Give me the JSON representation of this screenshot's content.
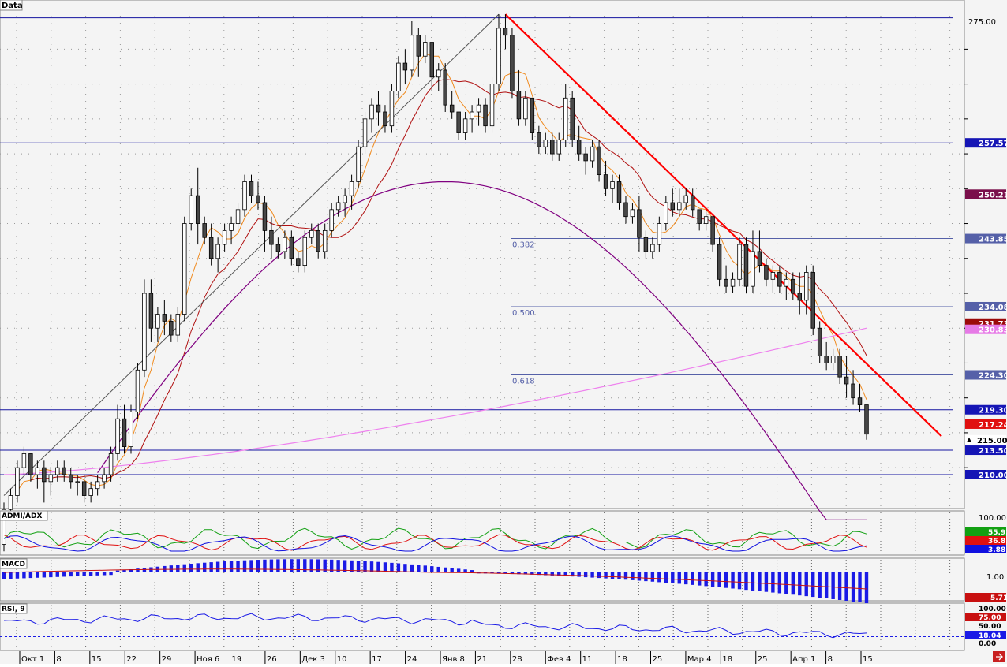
{
  "panels": {
    "main_label": "Data",
    "adx_label": "ADMI/ADX",
    "macd_label": "MACD",
    "rsi_label": "RSI, 9"
  },
  "chart_data": [
    {
      "type": "candlestick",
      "panel": "main",
      "y_axis_ticks": [
        "275.00"
      ],
      "ylim": [
        205,
        276
      ],
      "candles": {
        "values": [
          [
            200,
            206,
            199,
            205
          ],
          [
            205,
            208,
            204,
            207
          ],
          [
            207,
            212,
            206,
            211
          ],
          [
            211,
            214,
            210,
            213
          ],
          [
            213,
            213,
            209,
            210
          ],
          [
            210,
            212,
            208,
            211
          ],
          [
            211,
            212,
            206,
            209
          ],
          [
            209,
            211,
            207,
            210
          ],
          [
            210,
            212,
            209,
            211
          ],
          [
            211,
            212,
            209,
            210
          ],
          [
            210,
            211,
            208,
            209
          ],
          [
            209,
            210,
            207,
            209
          ],
          [
            209,
            210,
            206,
            207
          ],
          [
            207,
            209,
            206,
            208
          ],
          [
            208,
            210,
            207,
            209
          ],
          [
            209,
            211,
            208,
            210
          ],
          [
            210,
            214,
            209,
            213
          ],
          [
            213,
            220,
            212,
            218
          ],
          [
            218,
            220,
            213,
            214
          ],
          [
            214,
            220,
            213,
            219
          ],
          [
            219,
            226,
            218,
            225
          ],
          [
            225,
            238,
            224,
            236
          ],
          [
            236,
            238,
            229,
            231
          ],
          [
            231,
            234,
            229,
            233
          ],
          [
            233,
            235,
            230,
            232
          ],
          [
            232,
            233,
            229,
            230
          ],
          [
            230,
            234,
            229,
            233
          ],
          [
            233,
            247,
            232,
            246
          ],
          [
            246,
            251,
            245,
            250
          ],
          [
            250,
            254,
            243,
            246
          ],
          [
            246,
            247,
            243,
            244
          ],
          [
            244,
            246,
            240,
            241
          ],
          [
            241,
            244,
            239,
            243
          ],
          [
            243,
            246,
            242,
            245
          ],
          [
            245,
            247,
            243,
            246
          ],
          [
            246,
            249,
            245,
            248
          ],
          [
            248,
            253,
            247,
            252
          ],
          [
            252,
            253,
            249,
            250
          ],
          [
            250,
            252,
            248,
            249
          ],
          [
            249,
            250,
            242,
            245
          ],
          [
            245,
            247,
            241,
            243
          ],
          [
            243,
            244,
            241,
            242
          ],
          [
            242,
            245,
            241,
            244
          ],
          [
            244,
            245,
            240,
            241
          ],
          [
            241,
            242,
            239,
            240
          ],
          [
            240,
            245,
            239,
            244
          ],
          [
            244,
            246,
            243,
            245
          ],
          [
            245,
            246,
            241,
            242
          ],
          [
            242,
            246,
            241,
            245
          ],
          [
            245,
            249,
            244,
            248
          ],
          [
            248,
            250,
            247,
            249
          ],
          [
            249,
            251,
            247,
            250
          ],
          [
            250,
            253,
            248,
            252
          ],
          [
            252,
            258,
            251,
            257
          ],
          [
            257,
            262,
            256,
            261
          ],
          [
            261,
            264,
            259,
            263
          ],
          [
            263,
            265,
            260,
            262
          ],
          [
            262,
            263,
            259,
            260
          ],
          [
            260,
            266,
            259,
            265
          ],
          [
            265,
            270,
            264,
            269
          ],
          [
            269,
            271,
            266,
            268
          ],
          [
            268,
            275,
            267,
            273
          ],
          [
            273,
            274,
            267,
            270
          ],
          [
            270,
            273,
            269,
            272
          ],
          [
            272,
            271,
            265,
            267
          ],
          [
            267,
            269,
            265,
            268
          ],
          [
            268,
            269,
            262,
            263
          ],
          [
            263,
            265,
            261,
            262
          ],
          [
            262,
            262,
            258,
            259
          ],
          [
            259,
            262,
            258,
            261
          ],
          [
            261,
            263,
            259,
            262
          ],
          [
            262,
            264,
            260,
            263
          ],
          [
            263,
            264,
            259,
            260
          ],
          [
            260,
            267,
            259,
            266
          ],
          [
            266,
            276,
            265,
            274
          ],
          [
            274,
            276,
            271,
            273
          ],
          [
            273,
            274,
            264,
            265
          ],
          [
            265,
            268,
            260,
            261
          ],
          [
            261,
            265,
            260,
            264
          ],
          [
            264,
            263,
            258,
            259
          ],
          [
            259,
            260,
            256,
            257
          ],
          [
            257,
            259,
            256,
            258
          ],
          [
            258,
            259,
            255,
            256
          ],
          [
            256,
            259,
            255,
            258
          ],
          [
            258,
            266,
            257,
            264
          ],
          [
            264,
            265,
            257,
            258
          ],
          [
            258,
            260,
            255,
            256
          ],
          [
            256,
            257,
            253,
            255
          ],
          [
            255,
            258,
            254,
            257
          ],
          [
            257,
            258,
            252,
            253
          ],
          [
            253,
            255,
            250,
            251
          ],
          [
            251,
            253,
            249,
            252
          ],
          [
            252,
            253,
            248,
            249
          ],
          [
            249,
            250,
            246,
            247
          ],
          [
            247,
            249,
            246,
            248
          ],
          [
            248,
            250,
            242,
            244
          ],
          [
            244,
            245,
            241,
            242
          ],
          [
            242,
            244,
            241,
            243
          ],
          [
            243,
            247,
            242,
            246
          ],
          [
            246,
            250,
            245,
            249
          ],
          [
            249,
            251,
            247,
            248
          ],
          [
            248,
            251,
            247,
            249
          ],
          [
            249,
            251,
            248,
            250
          ],
          [
            250,
            251,
            247,
            248
          ],
          [
            248,
            248,
            245,
            246
          ],
          [
            246,
            248,
            245,
            247
          ],
          [
            247,
            247,
            242,
            243
          ],
          [
            243,
            244,
            237,
            238
          ],
          [
            238,
            240,
            236,
            237
          ],
          [
            237,
            239,
            236,
            238
          ],
          [
            238,
            244,
            237,
            243
          ],
          [
            243,
            244,
            236,
            237
          ],
          [
            237,
            245,
            236,
            242
          ],
          [
            242,
            245,
            239,
            240
          ],
          [
            240,
            241,
            237,
            238
          ],
          [
            238,
            240,
            236,
            239
          ],
          [
            239,
            240,
            236,
            237
          ],
          [
            237,
            239,
            235,
            238
          ],
          [
            238,
            239,
            235,
            236
          ],
          [
            236,
            239,
            233,
            235
          ],
          [
            235,
            240,
            233,
            239
          ],
          [
            239,
            240,
            230,
            231
          ],
          [
            231,
            232,
            226,
            227
          ],
          [
            227,
            229,
            225,
            226
          ],
          [
            226,
            228,
            225,
            227
          ],
          [
            227,
            228,
            223,
            224
          ],
          [
            224,
            227,
            221,
            223
          ],
          [
            223,
            225,
            220,
            221
          ],
          [
            221,
            223,
            219,
            220
          ],
          [
            220,
            219,
            215,
            215.8
          ]
        ]
      },
      "moving_averages": [
        "fast-ma",
        "slow-ma",
        "ma-50",
        "ma-100",
        "ma-200"
      ],
      "trend_lines": [
        "up-trend",
        "down-trend"
      ],
      "horizontal_levels": [
        275.5,
        257.57,
        219.3,
        213.5,
        210.0
      ],
      "fibonacci": [
        {
          "label": "0.382",
          "value": 243.85
        },
        {
          "label": "0.500",
          "value": 234.08
        },
        {
          "label": "0.618",
          "value": 224.3
        }
      ],
      "price_labels": [
        {
          "text": "257.57",
          "value": 257.57,
          "color": "#1515b5"
        },
        {
          "text": "250.21",
          "value": 250.21,
          "color": "#7a0f4b"
        },
        {
          "text": "243.85",
          "value": 243.85,
          "color": "#5560a8"
        },
        {
          "text": "234.08",
          "value": 234.08,
          "color": "#5560a8"
        },
        {
          "text": "231.73",
          "value": 231.73,
          "color": "#9b0a0a"
        },
        {
          "text": "230.83",
          "value": 230.83,
          "color": "#e67ae6"
        },
        {
          "text": "224.30",
          "value": 224.3,
          "color": "#5560a8"
        },
        {
          "text": "219.30",
          "value": 219.3,
          "color": "#1515b5"
        },
        {
          "text": "217.24",
          "value": 217.24,
          "color": "#e01010"
        },
        {
          "text": "215.00",
          "value": 215.0,
          "color": "#ffffff"
        },
        {
          "text": "213.50",
          "value": 213.5,
          "color": "#1515b5"
        },
        {
          "text": "210.00",
          "value": 210.0,
          "color": "#1515b5"
        }
      ],
      "x_axis_labels": [
        "Окт 1",
        "8",
        "15",
        "22",
        "29",
        "Ноя 6",
        "19",
        "26",
        "Дек 3",
        "10",
        "17",
        "24",
        "Янв 8",
        "21",
        "28",
        "Фев 4",
        "11",
        "18",
        "25",
        "Мар 4",
        "18",
        "25",
        "Апр 1",
        "8",
        "15"
      ]
    },
    {
      "type": "line",
      "panel": "ADMI/ADX",
      "ticks": [
        "100.00"
      ],
      "series": [
        {
          "value": 55.92,
          "color": "#12a012"
        },
        {
          "value": 36.81,
          "color": "#e01010"
        },
        {
          "value": 3.88,
          "color": "#1010e0"
        }
      ],
      "ylim": [
        0,
        100
      ]
    },
    {
      "type": "bar",
      "panel": "MACD",
      "ticks": [
        "1.00"
      ],
      "last_label": "5.71",
      "signal_label": "5.71",
      "ylim": [
        -10,
        4
      ]
    },
    {
      "type": "line",
      "panel": "RSI",
      "ticks": [
        "100.00",
        "75.00",
        "50.00",
        "18.04",
        "0.00"
      ],
      "ylim": [
        0,
        100
      ],
      "levels": [
        75,
        25
      ]
    }
  ],
  "colors": {
    "bull": "#ffffff",
    "bear": "#474747",
    "fast_ma": "#f08a1e",
    "slow_ma": "#b01010",
    "ma50": "#800080",
    "ma200": "#ee82ee",
    "down_trend": "#ff0000",
    "level": "#1515a0",
    "fib": "#5560a8"
  }
}
